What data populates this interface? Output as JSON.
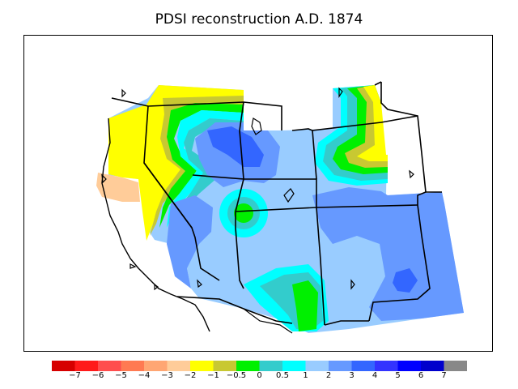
{
  "title": "PDSI reconstruction A.D. 1874",
  "legend": {
    "colors": [
      "#d60000",
      "#ff1a1a",
      "#ff4d4d",
      "#ff7a52",
      "#ffa673",
      "#ffcc99",
      "#ffff00",
      "#c8c832",
      "#00f000",
      "#33cccc",
      "#00ffff",
      "#99ccff",
      "#6699ff",
      "#3366ff",
      "#3333ff",
      "#0000ff",
      "#0000cc",
      "#888888"
    ],
    "labels": [
      "−7",
      "−6",
      "−5",
      "−4",
      "−3",
      "−2",
      "−1",
      "−0.5",
      "0",
      "0.5",
      "1",
      "2",
      "3",
      "4",
      "5",
      "6",
      "7"
    ]
  },
  "icons": [
    "state-boundary",
    "coastline",
    "lake"
  ]
}
